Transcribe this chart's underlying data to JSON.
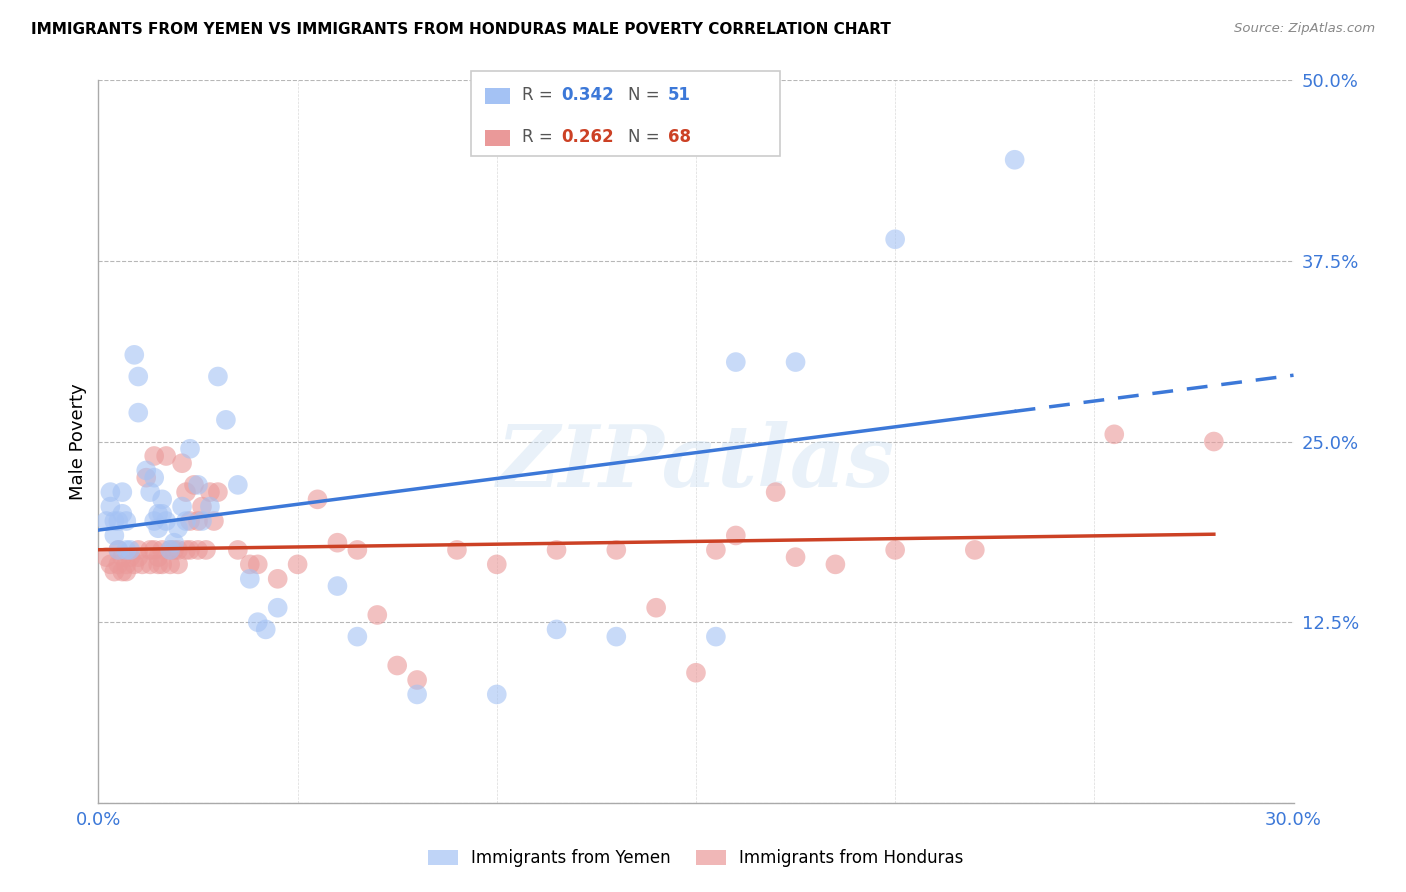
{
  "title": "IMMIGRANTS FROM YEMEN VS IMMIGRANTS FROM HONDURAS MALE POVERTY CORRELATION CHART",
  "source": "Source: ZipAtlas.com",
  "ylabel": "Male Poverty",
  "xlim": [
    0.0,
    0.3
  ],
  "ylim": [
    0.0,
    0.5
  ],
  "yticks": [
    0.0,
    0.125,
    0.25,
    0.375,
    0.5
  ],
  "ytick_labels": [
    "",
    "12.5%",
    "25.0%",
    "37.5%",
    "50.0%"
  ],
  "xticks": [
    0.0,
    0.05,
    0.1,
    0.15,
    0.2,
    0.25,
    0.3
  ],
  "xtick_labels": [
    "0.0%",
    "",
    "",
    "",
    "",
    "",
    "30.0%"
  ],
  "watermark": "ZIPatlas",
  "blue_color": "#a4c2f4",
  "pink_color": "#ea9999",
  "blue_line_color": "#3c78d8",
  "pink_line_color": "#cc4125",
  "axis_label_color": "#3c78d8",
  "grid_color": "#b7b7b7",
  "figsize": [
    14.06,
    8.92
  ],
  "dpi": 100,
  "yemen_scatter": [
    [
      0.002,
      0.195
    ],
    [
      0.003,
      0.205
    ],
    [
      0.003,
      0.215
    ],
    [
      0.004,
      0.195
    ],
    [
      0.004,
      0.185
    ],
    [
      0.005,
      0.195
    ],
    [
      0.005,
      0.175
    ],
    [
      0.006,
      0.215
    ],
    [
      0.006,
      0.2
    ],
    [
      0.007,
      0.175
    ],
    [
      0.007,
      0.195
    ],
    [
      0.008,
      0.175
    ],
    [
      0.009,
      0.31
    ],
    [
      0.01,
      0.295
    ],
    [
      0.01,
      0.27
    ],
    [
      0.012,
      0.23
    ],
    [
      0.013,
      0.215
    ],
    [
      0.014,
      0.225
    ],
    [
      0.014,
      0.195
    ],
    [
      0.015,
      0.2
    ],
    [
      0.015,
      0.19
    ],
    [
      0.016,
      0.2
    ],
    [
      0.016,
      0.21
    ],
    [
      0.017,
      0.195
    ],
    [
      0.018,
      0.175
    ],
    [
      0.019,
      0.18
    ],
    [
      0.02,
      0.19
    ],
    [
      0.021,
      0.205
    ],
    [
      0.022,
      0.195
    ],
    [
      0.023,
      0.245
    ],
    [
      0.025,
      0.22
    ],
    [
      0.026,
      0.195
    ],
    [
      0.028,
      0.205
    ],
    [
      0.03,
      0.295
    ],
    [
      0.032,
      0.265
    ],
    [
      0.035,
      0.22
    ],
    [
      0.038,
      0.155
    ],
    [
      0.04,
      0.125
    ],
    [
      0.042,
      0.12
    ],
    [
      0.045,
      0.135
    ],
    [
      0.06,
      0.15
    ],
    [
      0.065,
      0.115
    ],
    [
      0.08,
      0.075
    ],
    [
      0.1,
      0.075
    ],
    [
      0.115,
      0.12
    ],
    [
      0.13,
      0.115
    ],
    [
      0.155,
      0.115
    ],
    [
      0.16,
      0.305
    ],
    [
      0.175,
      0.305
    ],
    [
      0.2,
      0.39
    ],
    [
      0.23,
      0.445
    ]
  ],
  "honduras_scatter": [
    [
      0.002,
      0.17
    ],
    [
      0.003,
      0.165
    ],
    [
      0.004,
      0.16
    ],
    [
      0.005,
      0.175
    ],
    [
      0.005,
      0.165
    ],
    [
      0.006,
      0.17
    ],
    [
      0.006,
      0.16
    ],
    [
      0.007,
      0.165
    ],
    [
      0.007,
      0.16
    ],
    [
      0.008,
      0.17
    ],
    [
      0.009,
      0.165
    ],
    [
      0.01,
      0.175
    ],
    [
      0.01,
      0.17
    ],
    [
      0.011,
      0.165
    ],
    [
      0.012,
      0.225
    ],
    [
      0.013,
      0.175
    ],
    [
      0.013,
      0.165
    ],
    [
      0.014,
      0.24
    ],
    [
      0.014,
      0.175
    ],
    [
      0.015,
      0.17
    ],
    [
      0.015,
      0.165
    ],
    [
      0.016,
      0.175
    ],
    [
      0.016,
      0.165
    ],
    [
      0.017,
      0.24
    ],
    [
      0.018,
      0.175
    ],
    [
      0.018,
      0.165
    ],
    [
      0.019,
      0.175
    ],
    [
      0.02,
      0.165
    ],
    [
      0.02,
      0.175
    ],
    [
      0.021,
      0.235
    ],
    [
      0.022,
      0.175
    ],
    [
      0.022,
      0.215
    ],
    [
      0.023,
      0.195
    ],
    [
      0.023,
      0.175
    ],
    [
      0.024,
      0.22
    ],
    [
      0.025,
      0.195
    ],
    [
      0.025,
      0.175
    ],
    [
      0.026,
      0.205
    ],
    [
      0.027,
      0.175
    ],
    [
      0.028,
      0.215
    ],
    [
      0.029,
      0.195
    ],
    [
      0.03,
      0.215
    ],
    [
      0.035,
      0.175
    ],
    [
      0.038,
      0.165
    ],
    [
      0.04,
      0.165
    ],
    [
      0.045,
      0.155
    ],
    [
      0.05,
      0.165
    ],
    [
      0.055,
      0.21
    ],
    [
      0.06,
      0.18
    ],
    [
      0.065,
      0.175
    ],
    [
      0.07,
      0.13
    ],
    [
      0.075,
      0.095
    ],
    [
      0.08,
      0.085
    ],
    [
      0.09,
      0.175
    ],
    [
      0.1,
      0.165
    ],
    [
      0.115,
      0.175
    ],
    [
      0.13,
      0.175
    ],
    [
      0.14,
      0.135
    ],
    [
      0.15,
      0.09
    ],
    [
      0.155,
      0.175
    ],
    [
      0.16,
      0.185
    ],
    [
      0.17,
      0.215
    ],
    [
      0.175,
      0.17
    ],
    [
      0.185,
      0.165
    ],
    [
      0.2,
      0.175
    ],
    [
      0.22,
      0.175
    ],
    [
      0.255,
      0.255
    ],
    [
      0.28,
      0.25
    ]
  ]
}
